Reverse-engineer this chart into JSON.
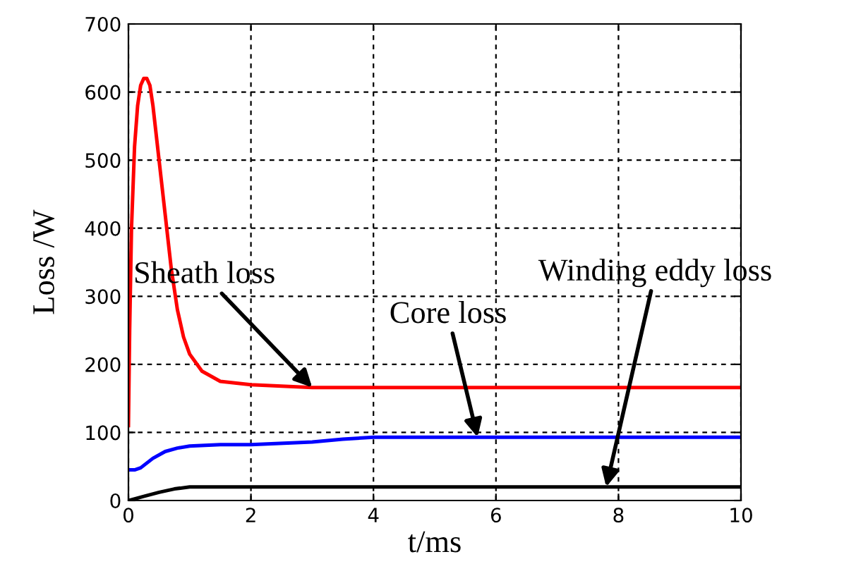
{
  "chart_data": {
    "type": "line",
    "xlabel": "t/ms",
    "ylabel": "Loss /W",
    "xlim": [
      0,
      10
    ],
    "ylim": [
      0,
      700
    ],
    "xticks": [
      0,
      2,
      4,
      6,
      8,
      10
    ],
    "yticks": [
      0,
      100,
      200,
      300,
      400,
      500,
      600,
      700
    ],
    "grid": true,
    "line_style": "solid",
    "marker": "none",
    "series": [
      {
        "color": "#ff0000",
        "x": [
          0,
          0.02,
          0.05,
          0.1,
          0.15,
          0.2,
          0.25,
          0.3,
          0.35,
          0.4,
          0.5,
          0.6,
          0.7,
          0.8,
          0.9,
          1.0,
          1.2,
          1.5,
          2,
          2.5,
          3,
          10
        ],
        "values": [
          110,
          250,
          400,
          520,
          580,
          610,
          620,
          620,
          610,
          580,
          500,
          420,
          340,
          280,
          240,
          215,
          190,
          175,
          170,
          168,
          166,
          166
        ]
      },
      {
        "color": "#0000ff",
        "x": [
          0,
          0.1,
          0.2,
          0.4,
          0.6,
          0.8,
          1,
          1.5,
          2,
          3,
          3.5,
          4,
          10
        ],
        "values": [
          45,
          45,
          48,
          62,
          72,
          77,
          80,
          82,
          82,
          86,
          90,
          93,
          93
        ]
      },
      {
        "color": "#000000",
        "x": [
          0,
          0.25,
          0.5,
          0.75,
          1,
          10
        ],
        "values": [
          0,
          6,
          12,
          17,
          20,
          20
        ]
      }
    ],
    "annotations": [
      {
        "text": "Sheath loss",
        "x": 3,
        "y": 166
      },
      {
        "text": "Core loss",
        "x": 5.7,
        "y": 93
      },
      {
        "text": "Winding eddy loss",
        "x": 7.8,
        "y": 20
      }
    ]
  }
}
